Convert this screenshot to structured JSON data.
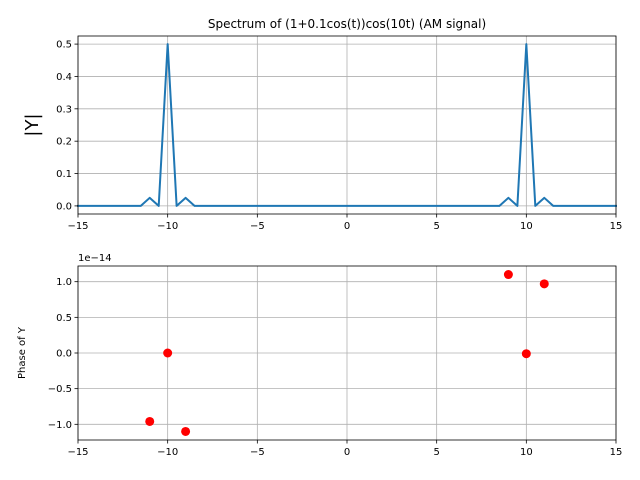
{
  "chart_data": [
    {
      "type": "line",
      "title": "Spectrum of (1+0.1cos(t))cos(10t) (AM signal)",
      "xlabel": "",
      "ylabel": "|Y|",
      "xlim": [
        -15,
        15
      ],
      "ylim": [
        -0.025,
        0.525
      ],
      "xticks": [
        -15,
        -10,
        -5,
        0,
        5,
        10,
        15
      ],
      "yticks": [
        0.0,
        0.1,
        0.2,
        0.3,
        0.4,
        0.5
      ],
      "xtick_labels": [
        "−15",
        "−10",
        "−5",
        "0",
        "5",
        "10",
        "15"
      ],
      "ytick_labels": [
        "0.0",
        "0.1",
        "0.2",
        "0.3",
        "0.4",
        "0.5"
      ],
      "grid": true,
      "color": "#1f77b4",
      "series": [
        {
          "x": [
            -15,
            -11.5,
            -11,
            -10.5,
            -10,
            -9.5,
            -9,
            -8.5,
            8.5,
            9,
            9.5,
            10,
            10.5,
            11,
            11.5,
            15
          ],
          "y": [
            0,
            0,
            0.025,
            0,
            0.5,
            0,
            0.025,
            0,
            0,
            0.025,
            0,
            0.5,
            0,
            0.025,
            0,
            0
          ]
        }
      ]
    },
    {
      "type": "scatter",
      "title": "",
      "xlabel": "",
      "ylabel": "Phase of Y",
      "offset_label": "1e−14",
      "xlim": [
        -15,
        15
      ],
      "ylim": [
        -1.22,
        1.22
      ],
      "xticks": [
        -15,
        -10,
        -5,
        0,
        5,
        10,
        15
      ],
      "yticks": [
        -1.0,
        -0.5,
        0.0,
        0.5,
        1.0
      ],
      "xtick_labels": [
        "−15",
        "−10",
        "−5",
        "0",
        "5",
        "10",
        "15"
      ],
      "ytick_labels": [
        "−1.0",
        "−0.5",
        "0.0",
        "0.5",
        "1.0"
      ],
      "grid": true,
      "color": "#ff0000",
      "series": [
        {
          "x": [
            -11,
            -10,
            -9,
            9,
            10,
            11
          ],
          "y": [
            -0.96,
            0.0,
            -1.1,
            1.1,
            -0.01,
            0.97
          ]
        }
      ]
    }
  ]
}
